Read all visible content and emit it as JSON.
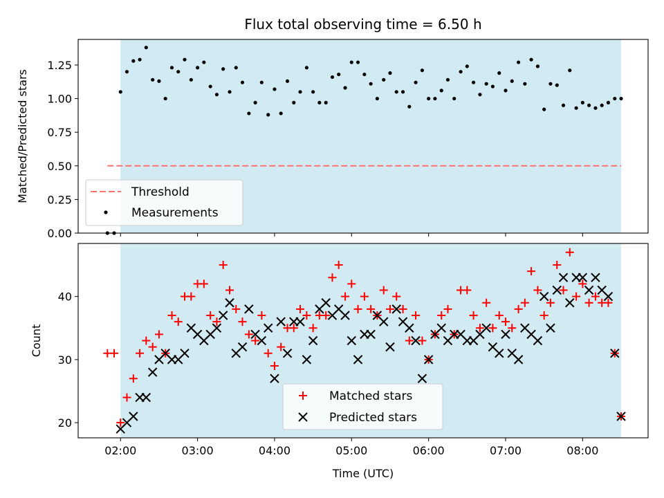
{
  "chart_data": [
    {
      "type": "scatter",
      "title": "Flux total observing time = 6.50 h",
      "ylabel": "Matched/Predicted stars",
      "xlim": [
        1.45,
        8.85
      ],
      "ylim": [
        0.0,
        1.44
      ],
      "yticks": [
        "0.00",
        "0.25",
        "0.50",
        "0.75",
        "1.00",
        "1.25"
      ],
      "shaded_region": [
        2.0,
        8.5
      ],
      "shade_color": "#add8e6",
      "threshold": {
        "name": "Threshold",
        "value": 0.5,
        "x_range": [
          1.83,
          8.5
        ],
        "color": "#ff7070"
      },
      "series": [
        {
          "name": "Measurements",
          "marker": "dot",
          "color": "#000000",
          "x": [
            1.83,
            1.917,
            2.0,
            2.083,
            2.167,
            2.25,
            2.333,
            2.417,
            2.5,
            2.583,
            2.667,
            2.75,
            2.833,
            2.917,
            3.0,
            3.083,
            3.167,
            3.25,
            3.333,
            3.417,
            3.5,
            3.583,
            3.667,
            3.75,
            3.833,
            3.917,
            4.0,
            4.083,
            4.167,
            4.25,
            4.333,
            4.417,
            4.5,
            4.583,
            4.667,
            4.75,
            4.833,
            4.917,
            5.0,
            5.083,
            5.167,
            5.25,
            5.333,
            5.417,
            5.5,
            5.583,
            5.667,
            5.75,
            5.833,
            5.917,
            6.0,
            6.083,
            6.167,
            6.25,
            6.333,
            6.417,
            6.5,
            6.583,
            6.667,
            6.75,
            6.833,
            6.917,
            7.0,
            7.083,
            7.167,
            7.25,
            7.333,
            7.417,
            7.5,
            7.583,
            7.667,
            7.75,
            7.833,
            7.917,
            8.0,
            8.083,
            8.167,
            8.25,
            8.333,
            8.417,
            8.5
          ],
          "y": [
            0.0,
            0.0,
            1.05,
            1.2,
            1.28,
            1.29,
            1.38,
            1.14,
            1.13,
            1.0,
            1.23,
            1.2,
            1.29,
            1.14,
            1.23,
            1.27,
            1.09,
            1.03,
            1.22,
            1.05,
            1.23,
            1.12,
            0.89,
            0.97,
            1.12,
            0.88,
            1.07,
            0.89,
            1.13,
            0.97,
            1.05,
            1.23,
            1.05,
            0.97,
            0.97,
            1.16,
            1.18,
            1.08,
            1.27,
            1.27,
            1.18,
            1.11,
            1.0,
            1.14,
            1.19,
            1.05,
            1.05,
            0.94,
            1.12,
            1.21,
            1.0,
            1.0,
            1.06,
            1.14,
            1.0,
            1.2,
            1.24,
            1.12,
            1.03,
            1.11,
            1.09,
            1.19,
            1.06,
            1.13,
            1.27,
            1.11,
            1.29,
            1.24,
            0.92,
            1.11,
            1.1,
            0.95,
            1.21,
            0.93,
            0.97,
            0.95,
            0.93,
            0.95,
            0.97,
            1.0,
            1.0
          ]
        }
      ],
      "legend": {
        "position": "lower-left"
      }
    },
    {
      "type": "scatter",
      "xlabel": "Time (UTC)",
      "ylabel": "Count",
      "xlim": [
        1.45,
        8.85
      ],
      "ylim": [
        17.6,
        48.4
      ],
      "xticks": [
        "02:00",
        "03:00",
        "04:00",
        "05:00",
        "06:00",
        "07:00",
        "08:00"
      ],
      "yticks": [
        "20",
        "30",
        "40"
      ],
      "shaded_region": [
        2.0,
        8.5
      ],
      "shade_color": "#add8e6",
      "series": [
        {
          "name": "Matched stars",
          "marker": "plus",
          "color": "#ff0000",
          "x": [
            1.83,
            1.917,
            2.0,
            2.083,
            2.167,
            2.25,
            2.333,
            2.417,
            2.5,
            2.583,
            2.667,
            2.75,
            2.833,
            2.917,
            3.0,
            3.083,
            3.167,
            3.25,
            3.333,
            3.417,
            3.5,
            3.583,
            3.667,
            3.75,
            3.833,
            3.917,
            4.0,
            4.083,
            4.167,
            4.25,
            4.333,
            4.417,
            4.5,
            4.583,
            4.667,
            4.75,
            4.833,
            4.917,
            5.0,
            5.083,
            5.167,
            5.25,
            5.333,
            5.417,
            5.5,
            5.583,
            5.667,
            5.75,
            5.833,
            5.917,
            6.0,
            6.083,
            6.167,
            6.25,
            6.333,
            6.417,
            6.5,
            6.583,
            6.667,
            6.75,
            6.833,
            6.917,
            7.0,
            7.083,
            7.167,
            7.25,
            7.333,
            7.417,
            7.5,
            7.583,
            7.667,
            7.75,
            7.833,
            7.917,
            8.0,
            8.083,
            8.167,
            8.25,
            8.333,
            8.417,
            8.5
          ],
          "y": [
            31,
            31,
            20,
            24,
            27,
            31,
            33,
            32,
            34,
            31,
            37,
            36,
            40,
            40,
            42,
            42,
            37,
            36,
            45,
            41,
            38,
            36,
            34,
            33,
            37,
            31,
            29,
            32,
            35,
            35,
            38,
            37,
            35,
            37,
            37,
            43,
            45,
            40,
            42,
            38,
            40,
            38,
            37,
            41,
            38,
            40,
            38,
            33,
            37,
            33,
            30,
            34,
            37,
            38,
            34,
            41,
            41,
            37,
            35,
            39,
            35,
            37,
            36,
            35,
            38,
            39,
            44,
            41,
            37,
            39,
            45,
            41,
            47,
            40,
            42,
            39,
            40,
            39,
            39,
            31,
            21
          ]
        },
        {
          "name": "Predicted stars",
          "marker": "x",
          "color": "#000000",
          "x": [
            2.0,
            2.083,
            2.167,
            2.25,
            2.333,
            2.417,
            2.5,
            2.583,
            2.667,
            2.75,
            2.833,
            2.917,
            3.0,
            3.083,
            3.167,
            3.25,
            3.333,
            3.417,
            3.5,
            3.583,
            3.667,
            3.75,
            3.833,
            3.917,
            4.0,
            4.083,
            4.167,
            4.25,
            4.333,
            4.417,
            4.5,
            4.583,
            4.667,
            4.75,
            4.833,
            4.917,
            5.0,
            5.083,
            5.167,
            5.25,
            5.333,
            5.417,
            5.5,
            5.583,
            5.667,
            5.75,
            5.833,
            5.917,
            6.0,
            6.083,
            6.167,
            6.25,
            6.333,
            6.417,
            6.5,
            6.583,
            6.667,
            6.75,
            6.833,
            6.917,
            7.0,
            7.083,
            7.167,
            7.25,
            7.333,
            7.417,
            7.5,
            7.583,
            7.667,
            7.75,
            7.833,
            7.917,
            8.0,
            8.083,
            8.167,
            8.25,
            8.333,
            8.417,
            8.5
          ],
          "y": [
            19,
            20,
            21,
            24,
            24,
            28,
            30,
            31,
            30,
            30,
            31,
            35,
            34,
            33,
            34,
            35,
            37,
            39,
            31,
            32,
            38,
            34,
            33,
            35,
            27,
            36,
            31,
            36,
            36,
            30,
            33,
            38,
            39,
            37,
            38,
            37,
            33,
            30,
            34,
            34,
            37,
            36,
            32,
            38,
            36,
            35,
            33,
            27,
            30,
            34,
            35,
            33,
            34,
            34,
            33,
            33,
            34,
            35,
            32,
            31,
            34,
            31,
            30,
            35,
            34,
            33,
            40,
            35,
            41,
            43,
            39,
            43,
            43,
            41,
            43,
            41,
            40,
            31,
            21
          ]
        }
      ],
      "legend": {
        "position": "lower-center"
      }
    }
  ]
}
